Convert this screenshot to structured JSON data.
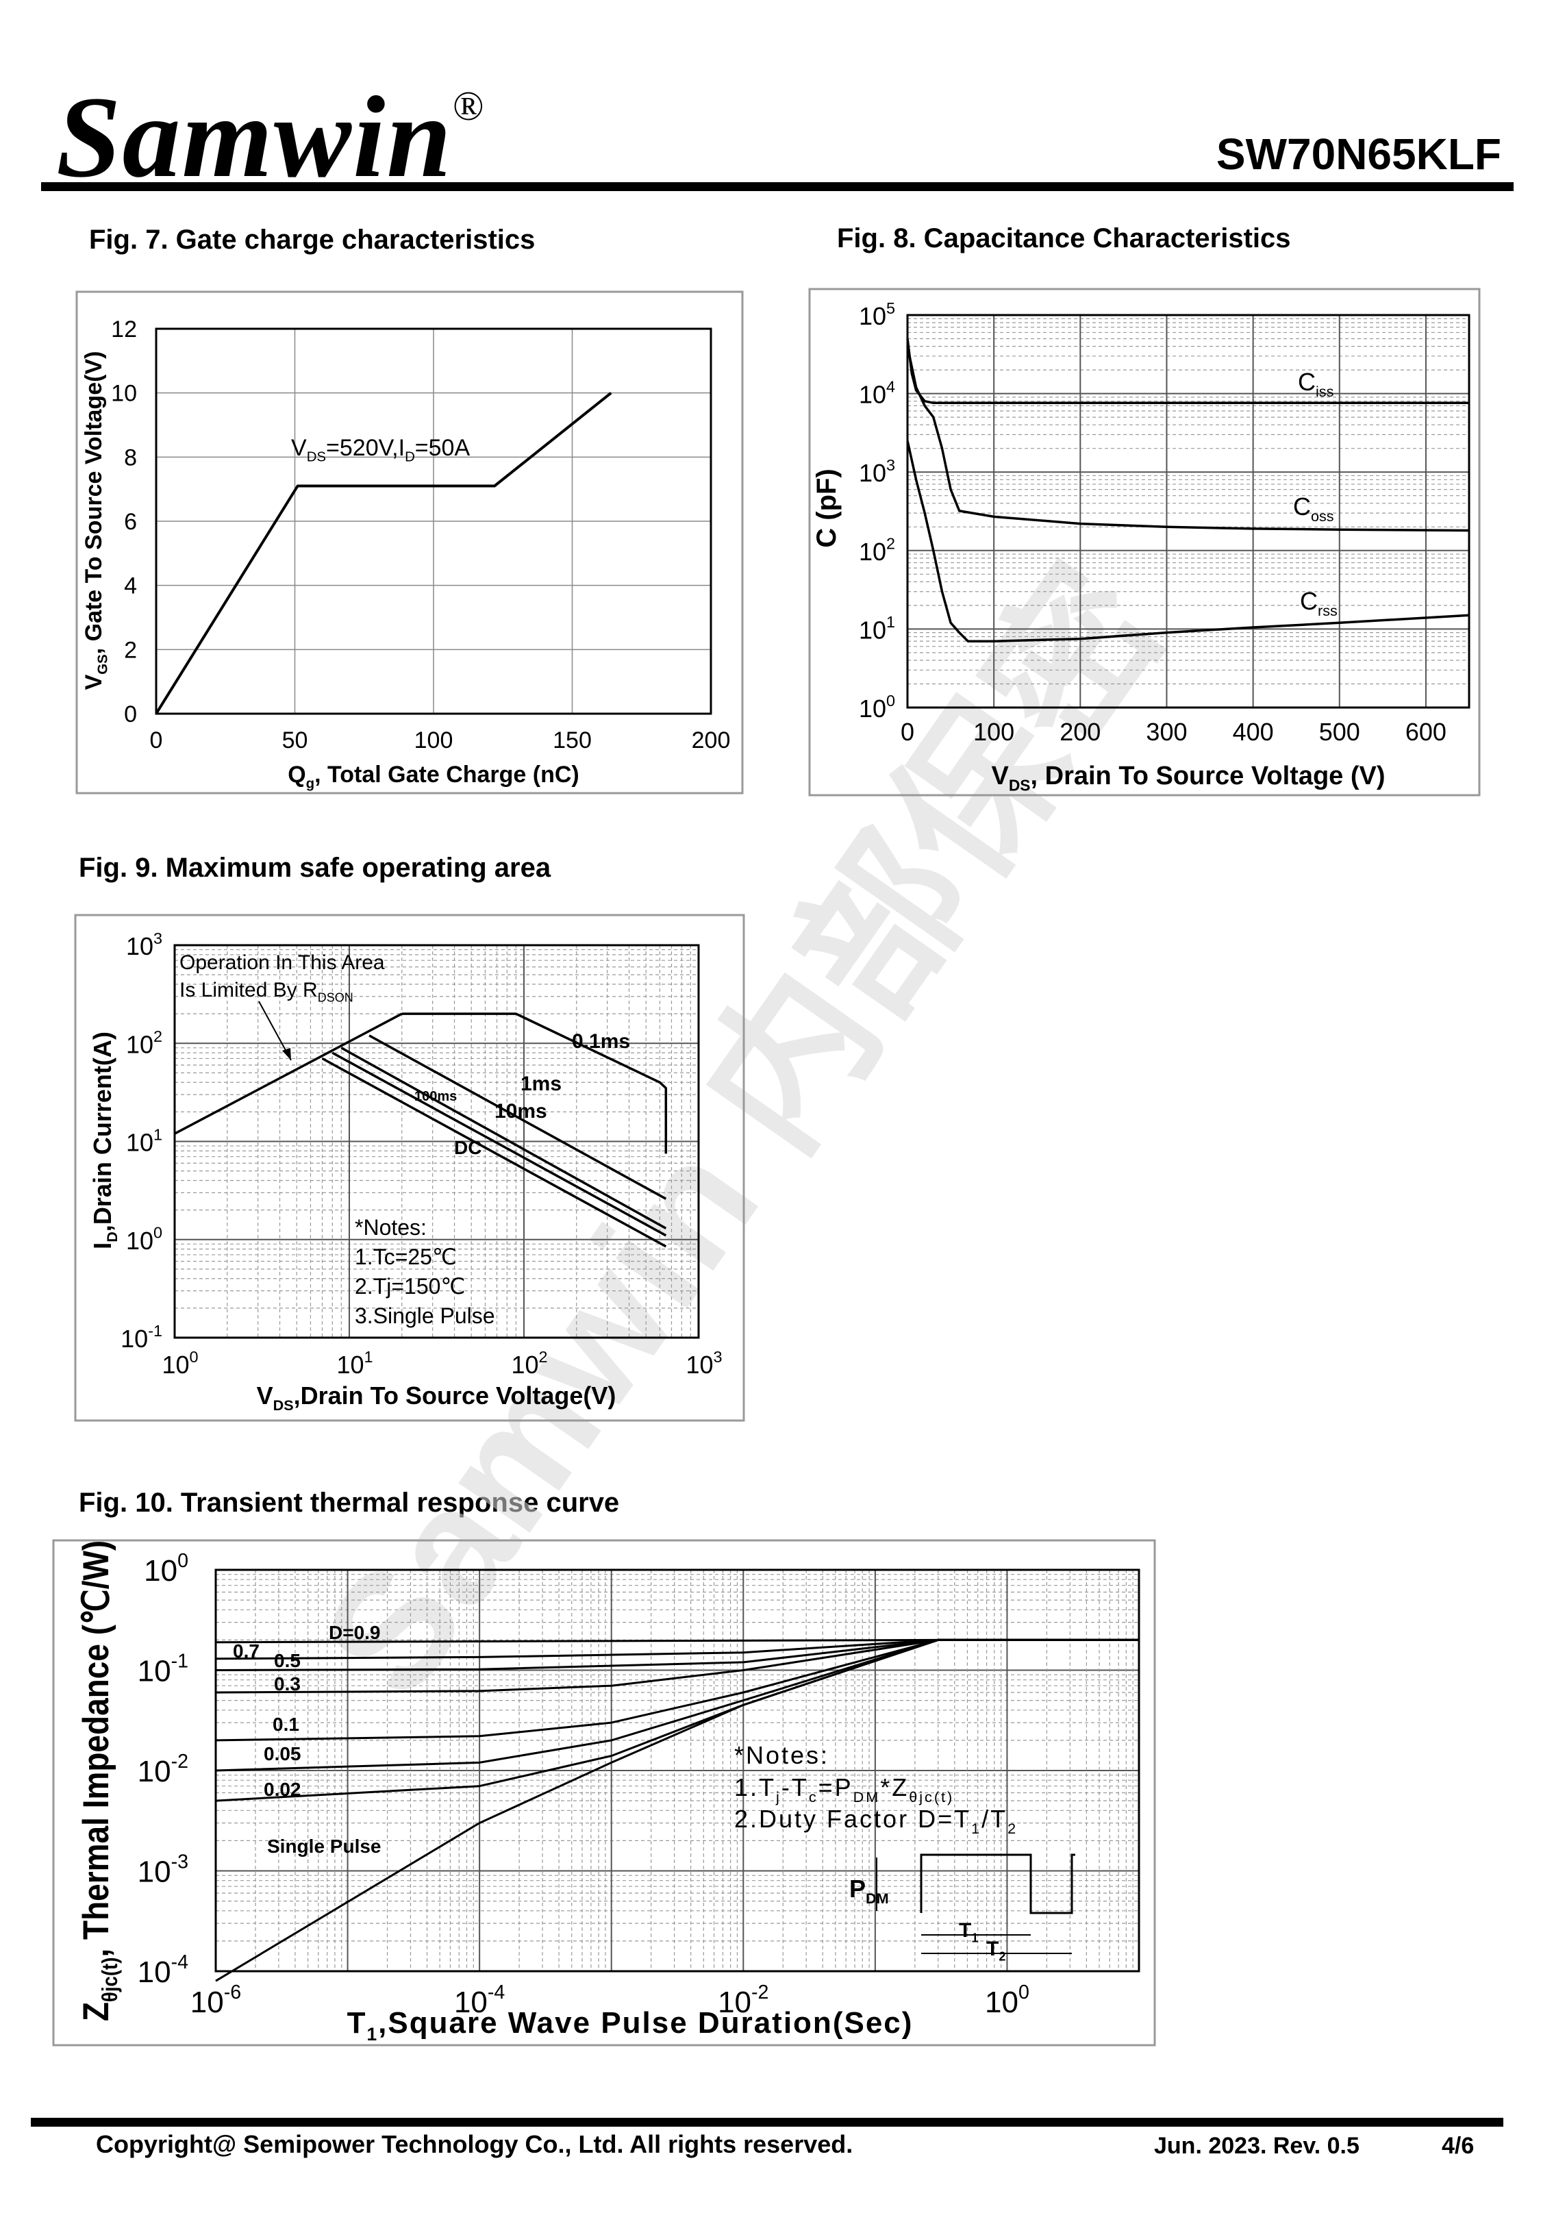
{
  "header": {
    "brand": "Samwin",
    "brand_mark": "®",
    "part_number": "SW70N65KLF"
  },
  "footer": {
    "copyright": "Copyright@ Semipower Technology Co., Ltd. All rights reserved.",
    "date_rev": "Jun. 2023. Rev. 0.5",
    "page": "4/6"
  },
  "watermark": {
    "text": "Samwin 内部保密",
    "color": "#d8d8d8"
  },
  "figures": {
    "fig7": {
      "title": "Fig. 7. Gate charge characteristics"
    },
    "fig8": {
      "title": "Fig. 8. Capacitance Characteristics"
    },
    "fig9": {
      "title": "Fig. 9. Maximum safe operating area"
    },
    "fig10": {
      "title": "Fig. 10. Transient thermal response curve"
    }
  },
  "chart_data": [
    {
      "id": "fig7",
      "type": "line",
      "xlabel": "Qg, Total Gate Charge (nC)",
      "ylabel": "VGS, Gate To Source Voltage(V)",
      "xlim": [
        0,
        200
      ],
      "ylim": [
        0,
        12
      ],
      "xticks": [
        0,
        50,
        100,
        150,
        200
      ],
      "yticks": [
        0,
        2,
        4,
        6,
        8,
        10,
        12
      ],
      "grid": true,
      "annotation": "VDS=520V,ID=50A",
      "series": [
        {
          "x": [
            0,
            51,
            122,
            164
          ],
          "y": [
            0,
            7.1,
            7.1,
            10
          ]
        }
      ]
    },
    {
      "id": "fig8",
      "type": "line",
      "xlabel": "VDS, Drain To Source Voltage (V)",
      "ylabel": "C (pF)",
      "yscale": "log",
      "xlim": [
        0,
        650
      ],
      "ylim": [
        1,
        100000
      ],
      "xticks": [
        0,
        100,
        200,
        300,
        400,
        500,
        600
      ],
      "yticks": [
        "10^0",
        "10^1",
        "10^2",
        "10^3",
        "10^4",
        "10^5"
      ],
      "grid": true,
      "series": [
        {
          "name": "Ciss",
          "x": [
            0,
            5,
            10,
            20,
            30,
            650
          ],
          "y": [
            50000,
            18000,
            11000,
            8000,
            7600,
            7600
          ]
        },
        {
          "name": "Coss",
          "x": [
            0,
            10,
            20,
            30,
            40,
            50,
            60,
            100,
            200,
            300,
            400,
            500,
            650
          ],
          "y": [
            40000,
            12000,
            7000,
            5000,
            2000,
            600,
            320,
            270,
            220,
            200,
            190,
            185,
            180
          ]
        },
        {
          "name": "Crss",
          "x": [
            0,
            10,
            20,
            30,
            40,
            50,
            60,
            70,
            100,
            200,
            300,
            400,
            500,
            650
          ],
          "y": [
            2500,
            800,
            300,
            100,
            30,
            12,
            9,
            7,
            7,
            7.5,
            9,
            10.5,
            12,
            15
          ]
        }
      ]
    },
    {
      "id": "fig9",
      "type": "line",
      "xlabel": "VDS,Drain To Source Voltage(V)",
      "ylabel": "ID,Drain Current(A)",
      "xscale": "log",
      "yscale": "log",
      "xlim": [
        1,
        1000
      ],
      "ylim": [
        0.1,
        1000
      ],
      "xticks": [
        "10^0",
        "10^1",
        "10^2",
        "10^3"
      ],
      "yticks": [
        "10^-1",
        "10^0",
        "10^1",
        "10^2",
        "10^3"
      ],
      "grid": true,
      "annotations": [
        "Operation In This Area",
        "Is Limited By RDSON"
      ],
      "notes": [
        "*Notes:",
        "1.Tc=25℃",
        "2.Tj=150℃",
        "3.Single Pulse"
      ],
      "series": [
        {
          "name": "RDS(on) limit",
          "x": [
            1,
            20
          ],
          "y": [
            12,
            200
          ]
        },
        {
          "name": "0.1ms",
          "x": [
            20,
            90,
            600,
            650,
            650
          ],
          "y": [
            200,
            200,
            40,
            35,
            7.5
          ]
        },
        {
          "name": "1ms",
          "x": [
            13,
            650
          ],
          "y": [
            120,
            2.6
          ]
        },
        {
          "name": "10ms",
          "x": [
            9,
            650
          ],
          "y": [
            90,
            1.3
          ]
        },
        {
          "name": "100ms",
          "x": [
            8,
            650
          ],
          "y": [
            80,
            1.1
          ]
        },
        {
          "name": "DC",
          "x": [
            7,
            650
          ],
          "y": [
            70,
            0.85
          ]
        }
      ]
    },
    {
      "id": "fig10",
      "type": "line",
      "xlabel": "T1,Square Wave Pulse Duration(Sec)",
      "ylabel": "Zθjc(t), Thermal Impedance (℃/W)",
      "xscale": "log",
      "yscale": "log",
      "xlim": [
        1e-06,
        10
      ],
      "ylim": [
        0.0001,
        1
      ],
      "xticks": [
        "10^-6",
        "10^-4",
        "10^-2",
        "10^0"
      ],
      "yticks": [
        "10^-4",
        "10^-3",
        "10^-2",
        "10^-1",
        "10^0"
      ],
      "grid": true,
      "notes": [
        "*Notes:",
        "1.Tj-Tc=PDM*Zθjc(t)",
        "2.Duty Factor D=T1/T2"
      ],
      "pulse_labels": {
        "pdm": "PDM",
        "t1": "T1",
        "t2": "T2"
      },
      "series": [
        {
          "name": "D=0.9",
          "x": [
            1e-06,
            0.3,
            10
          ],
          "y": [
            0.19,
            0.2,
            0.2
          ]
        },
        {
          "name": "0.7",
          "x": [
            1e-06,
            0.0001,
            0.01,
            0.3,
            10
          ],
          "y": [
            0.13,
            0.135,
            0.15,
            0.2,
            0.2
          ]
        },
        {
          "name": "0.5",
          "x": [
            1e-06,
            0.0001,
            0.01,
            0.3,
            10
          ],
          "y": [
            0.1,
            0.102,
            0.12,
            0.2,
            0.2
          ]
        },
        {
          "name": "0.3",
          "x": [
            1e-06,
            0.0001,
            0.001,
            0.01,
            0.3,
            10
          ],
          "y": [
            0.06,
            0.062,
            0.07,
            0.1,
            0.2,
            0.2
          ]
        },
        {
          "name": "0.1",
          "x": [
            1e-06,
            0.0001,
            0.001,
            0.01,
            0.3,
            10
          ],
          "y": [
            0.02,
            0.022,
            0.03,
            0.06,
            0.2,
            0.2
          ]
        },
        {
          "name": "0.05",
          "x": [
            1e-06,
            0.0001,
            0.001,
            0.01,
            0.3,
            10
          ],
          "y": [
            0.01,
            0.012,
            0.02,
            0.05,
            0.2,
            0.2
          ]
        },
        {
          "name": "0.02",
          "x": [
            1e-06,
            0.0001,
            0.001,
            0.01,
            0.3,
            10
          ],
          "y": [
            0.005,
            0.007,
            0.014,
            0.045,
            0.2,
            0.2
          ]
        },
        {
          "name": "Single Pulse",
          "x": [
            1e-06,
            0.0001,
            0.001,
            0.01,
            0.3,
            10
          ],
          "y": [
            8e-05,
            0.003,
            0.012,
            0.045,
            0.2,
            0.2
          ]
        }
      ]
    }
  ]
}
